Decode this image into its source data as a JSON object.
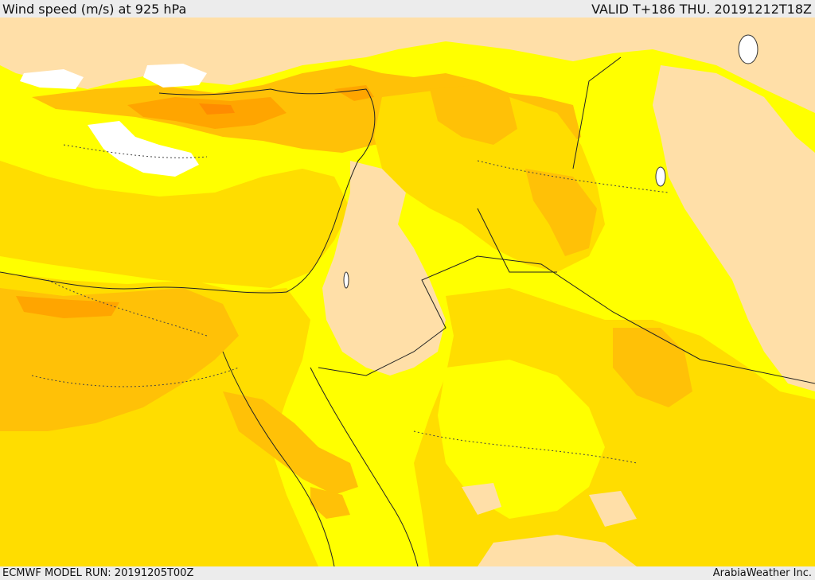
{
  "header": {
    "title": "Wind speed (m/s) at 925 hPa",
    "valid": "VALID T+186 THU. 20191212T18Z"
  },
  "footer": {
    "model_run": "ECMWF MODEL RUN: 20191205T00Z",
    "credit": "ArabiaWeather Inc."
  },
  "colors": {
    "land_calm": "#ffdfa8",
    "low": "#ffff00",
    "moderate": "#ffdd00",
    "fresh": "#ffc107",
    "strong": "#ffa500",
    "gale": "#ff8c00",
    "calm_white": "#ffffff"
  }
}
